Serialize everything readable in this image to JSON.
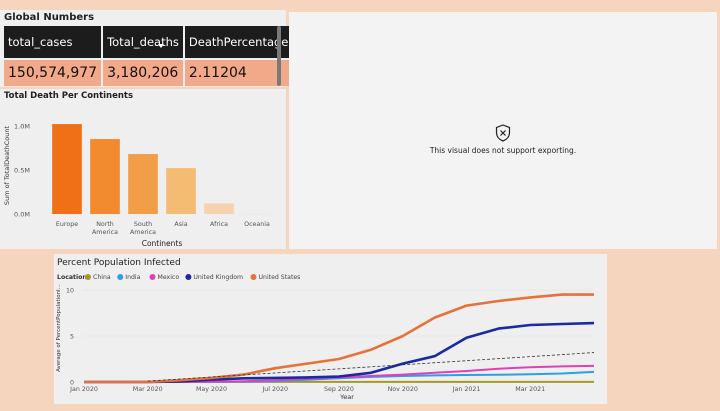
{
  "global_numbers": {
    "title": "Global Numbers",
    "columns": [
      "total_cases",
      "Total_deaths",
      "DeathPercentage"
    ],
    "values": [
      "150,574,977",
      "3,180,206",
      "2.11204"
    ]
  },
  "unsupported": {
    "message": "This visual does not support exporting."
  },
  "chart_data": [
    {
      "type": "bar",
      "title": "Total Death Per Continents",
      "xlabel": "Continents",
      "ylabel": "Sum of TotalDeathCount",
      "categories": [
        "Europe",
        "North America",
        "South America",
        "Asia",
        "Africa",
        "Oceania"
      ],
      "category_lines": [
        [
          "Europe"
        ],
        [
          "North",
          "America"
        ],
        [
          "South",
          "America"
        ],
        [
          "Asia"
        ],
        [
          "Africa"
        ],
        [
          "Oceania"
        ]
      ],
      "values": [
        1020000,
        850000,
        680000,
        520000,
        120000,
        1000
      ],
      "colors": [
        "#f07018",
        "#f28a30",
        "#f29e48",
        "#f4bb72",
        "#f6d2ae",
        "#f9e4d4"
      ],
      "yticks": [
        {
          "v": 0,
          "t": "0.0M"
        },
        {
          "v": 500000,
          "t": "0.5M"
        },
        {
          "v": 1000000,
          "t": "1.0M"
        }
      ],
      "ylim": [
        0,
        1100000
      ]
    },
    {
      "type": "line",
      "title": "Percent Population Infected",
      "legend_title": "Location",
      "xlabel": "Year",
      "ylabel": "Average of PercentPopulationI...",
      "x": [
        0,
        1,
        2,
        3,
        4,
        5,
        6,
        7,
        8,
        9,
        10,
        11,
        12,
        13,
        14,
        15,
        16
      ],
      "xticks": [
        {
          "i": 0,
          "t": "Jan 2020"
        },
        {
          "i": 2,
          "t": "Mar 2020"
        },
        {
          "i": 4,
          "t": "May 2020"
        },
        {
          "i": 6,
          "t": "Jul 2020"
        },
        {
          "i": 8,
          "t": "Sep 2020"
        },
        {
          "i": 10,
          "t": "Nov 2020"
        },
        {
          "i": 12,
          "t": "Jan 2021"
        },
        {
          "i": 14,
          "t": "Mar 2021"
        }
      ],
      "yticks": [
        {
          "v": 0,
          "t": "0"
        },
        {
          "v": 5,
          "t": "5"
        },
        {
          "v": 10,
          "t": "10"
        }
      ],
      "ylim": [
        0,
        10
      ],
      "series": [
        {
          "name": "China",
          "color": "#a89a1c",
          "values": [
            0,
            0.005,
            0.006,
            0.006,
            0.006,
            0.006,
            0.006,
            0.006,
            0.006,
            0.006,
            0.006,
            0.006,
            0.006,
            0.006,
            0.006,
            0.006,
            0.007
          ]
        },
        {
          "name": "India",
          "color": "#2aa0e8",
          "values": [
            0,
            0,
            0,
            0,
            0.01,
            0.03,
            0.1,
            0.25,
            0.4,
            0.55,
            0.65,
            0.72,
            0.76,
            0.79,
            0.84,
            0.92,
            1.1
          ]
        },
        {
          "name": "Mexico",
          "color": "#e040b8",
          "values": [
            0,
            0,
            0,
            0,
            0.02,
            0.08,
            0.2,
            0.35,
            0.5,
            0.65,
            0.8,
            1.0,
            1.2,
            1.45,
            1.6,
            1.7,
            1.75
          ]
        },
        {
          "name": "United Kingdom",
          "color": "#1a2aa0",
          "values": [
            0,
            0,
            0.005,
            0.05,
            0.25,
            0.4,
            0.45,
            0.5,
            0.6,
            1.0,
            2.0,
            2.8,
            4.8,
            5.8,
            6.2,
            6.3,
            6.4
          ]
        },
        {
          "name": "United States",
          "color": "#e8703a",
          "values": [
            0,
            0,
            0.005,
            0.2,
            0.45,
            0.8,
            1.5,
            2.0,
            2.5,
            3.5,
            5.0,
            7.0,
            8.3,
            8.8,
            9.2,
            9.5,
            9.5
          ]
        }
      ],
      "trend": [
        0.1,
        3.2
      ]
    }
  ]
}
